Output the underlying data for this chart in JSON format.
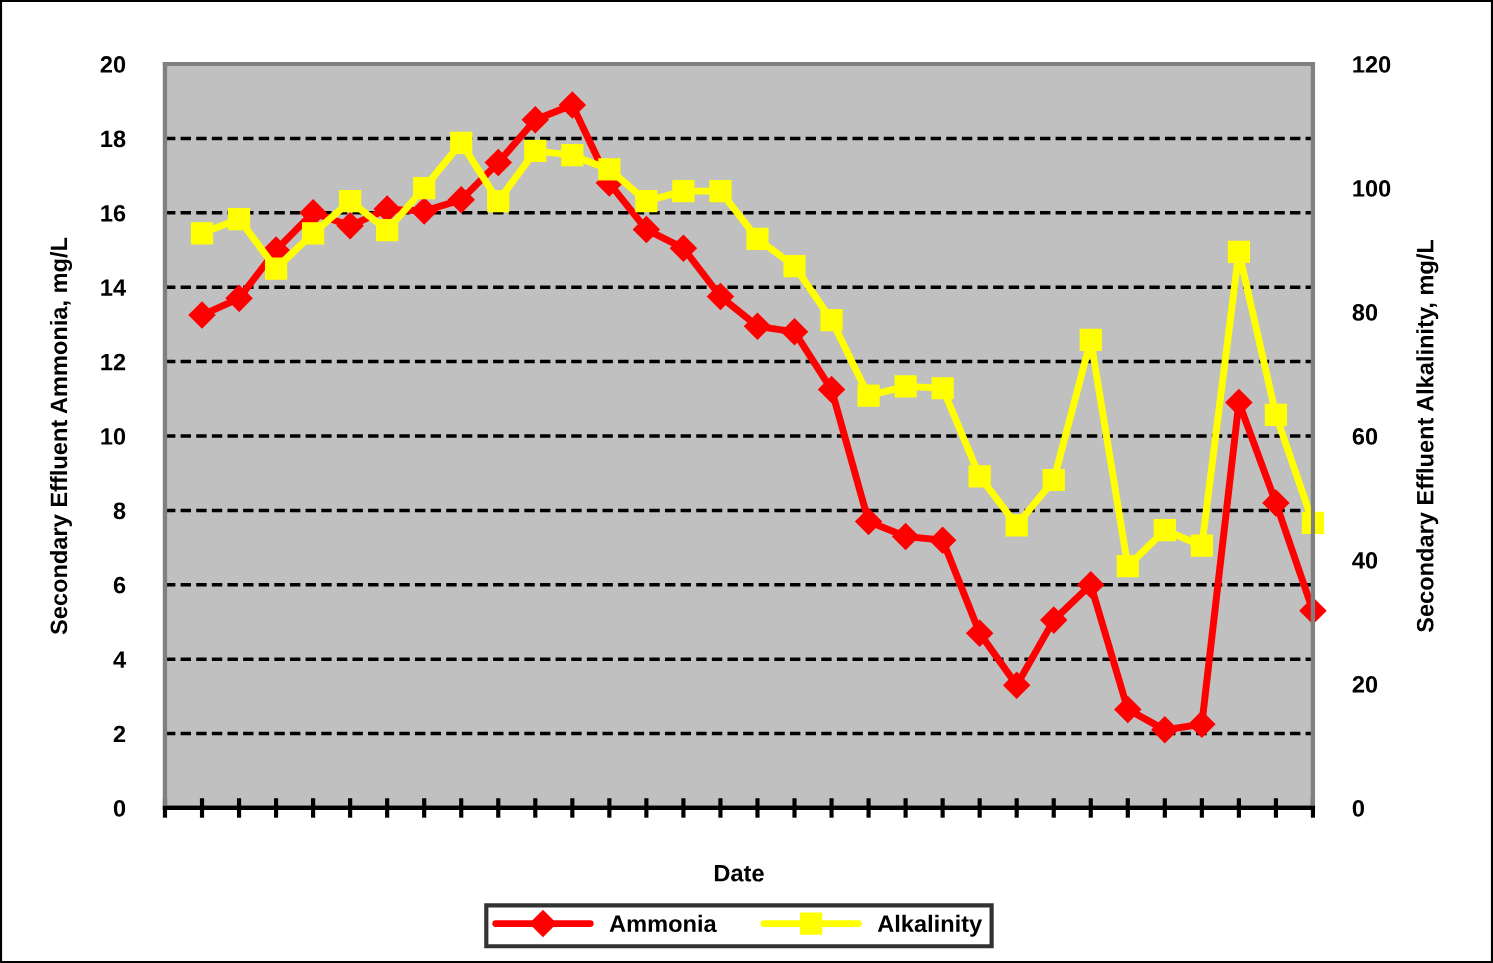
{
  "chart_data": {
    "type": "line",
    "xlabel": "Date",
    "ylabel": "Secondary Effluent Ammonia, mg/L",
    "y2label": "Secondary Effluent Alkalinity, mg/L",
    "categories": [
      null,
      null,
      null,
      null,
      null,
      null,
      null,
      null,
      null,
      null,
      null,
      null,
      null,
      null,
      null,
      null,
      null,
      null,
      null,
      null,
      null,
      null,
      null,
      null,
      null,
      null,
      null,
      null,
      null,
      null,
      null
    ],
    "series": [
      {
        "name": "Ammonia",
        "color": "#ff0000",
        "marker": "diamond",
        "values": [
          13.25,
          13.7,
          15.0,
          16.0,
          15.65,
          16.1,
          16.05,
          16.35,
          17.35,
          18.5,
          18.9,
          16.8,
          15.55,
          15.05,
          13.75,
          12.95,
          12.8,
          11.25,
          7.7,
          7.3,
          7.2,
          4.7,
          3.3,
          5.05,
          6.0,
          2.65,
          2.1,
          2.25,
          10.9,
          8.2,
          5.3
        ]
      },
      {
        "name": "Alkalinity",
        "color": "#ffff00",
        "marker": "square",
        "axis": "y2",
        "values": [
          92.7,
          95,
          87,
          92.7,
          97.9,
          93.2,
          100,
          107.3,
          97.9,
          106,
          105.3,
          103,
          97.9,
          99.5,
          99.5,
          91.8,
          87.4,
          78.7,
          66.5,
          68,
          67.7,
          53.5,
          45.6,
          52.9,
          75.5,
          39,
          44.8,
          42.3,
          89.7,
          63.4,
          46
        ]
      }
    ],
    "ylim": [
      0,
      20
    ],
    "yticks": [
      0,
      2,
      4,
      6,
      8,
      10,
      12,
      14,
      16,
      18,
      20
    ],
    "y2lim": [
      0,
      120
    ],
    "y2ticks": [
      0,
      20,
      40,
      60,
      80,
      100,
      120
    ],
    "grid": "y",
    "legend": "bottom",
    "line_style": "solid"
  }
}
